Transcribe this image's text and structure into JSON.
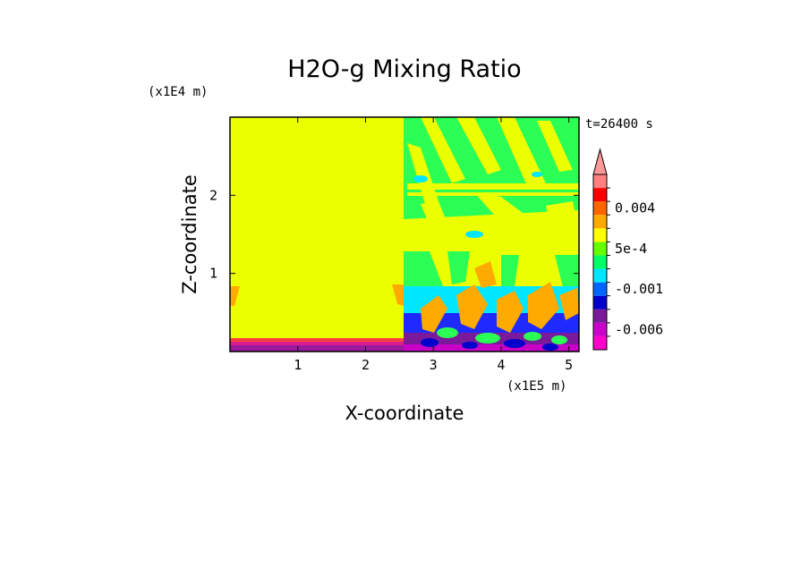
{
  "chart_data": {
    "type": "heatmap",
    "title": "H2O-g Mixing Ratio",
    "xlabel": "X-coordinate",
    "ylabel": "Z-coordinate",
    "x_unit": "(x1E5 m)",
    "y_unit": "(x1E4 m)",
    "time_label": "t=26400 s",
    "xlim": [
      0,
      5.15
    ],
    "ylim": [
      0,
      3.0
    ],
    "x_ticks": [
      1,
      2,
      3,
      4,
      5
    ],
    "y_ticks": [
      1,
      2
    ],
    "x_tick_labels": [
      "1",
      "2",
      "3",
      "4",
      "5"
    ],
    "y_tick_labels": [
      "1",
      "2"
    ],
    "colorbar": {
      "levels": [
        -0.009,
        -0.006,
        -0.004,
        -0.002,
        -0.001,
        -0.0005,
        0.0,
        0.0005,
        0.001,
        0.002,
        0.004,
        0.006,
        0.009
      ],
      "colors": [
        "#ff00cc",
        "#cc00cc",
        "#7a1a9a",
        "#0000cc",
        "#0066ff",
        "#00e6ff",
        "#00ff66",
        "#66ff00",
        "#ffff00",
        "#ffaa00",
        "#ff6600",
        "#ff0000",
        "#ff8080"
      ],
      "extend_color": "#ff9999",
      "labels": [
        "0.004",
        "5e-4",
        "-0.001",
        "-0.006"
      ],
      "label_values": [
        0.004,
        0.0005,
        -0.001,
        -0.006
      ]
    },
    "regions": [
      {
        "name": "left-domain-bulk",
        "x": [
          0,
          2.55
        ],
        "z": [
          0.12,
          3.0
        ],
        "value": 0.0012
      },
      {
        "name": "left-surface-band",
        "x": [
          0,
          2.55
        ],
        "z": [
          0.0,
          0.12
        ],
        "value": -0.007
      },
      {
        "name": "right-upper-mixed",
        "x": [
          2.55,
          5.15
        ],
        "z": [
          1.0,
          3.0
        ],
        "value": 0.0002
      },
      {
        "name": "right-lower-turbulent",
        "x": [
          2.55,
          5.15
        ],
        "z": [
          0.0,
          1.0
        ],
        "value": -0.003
      }
    ]
  }
}
